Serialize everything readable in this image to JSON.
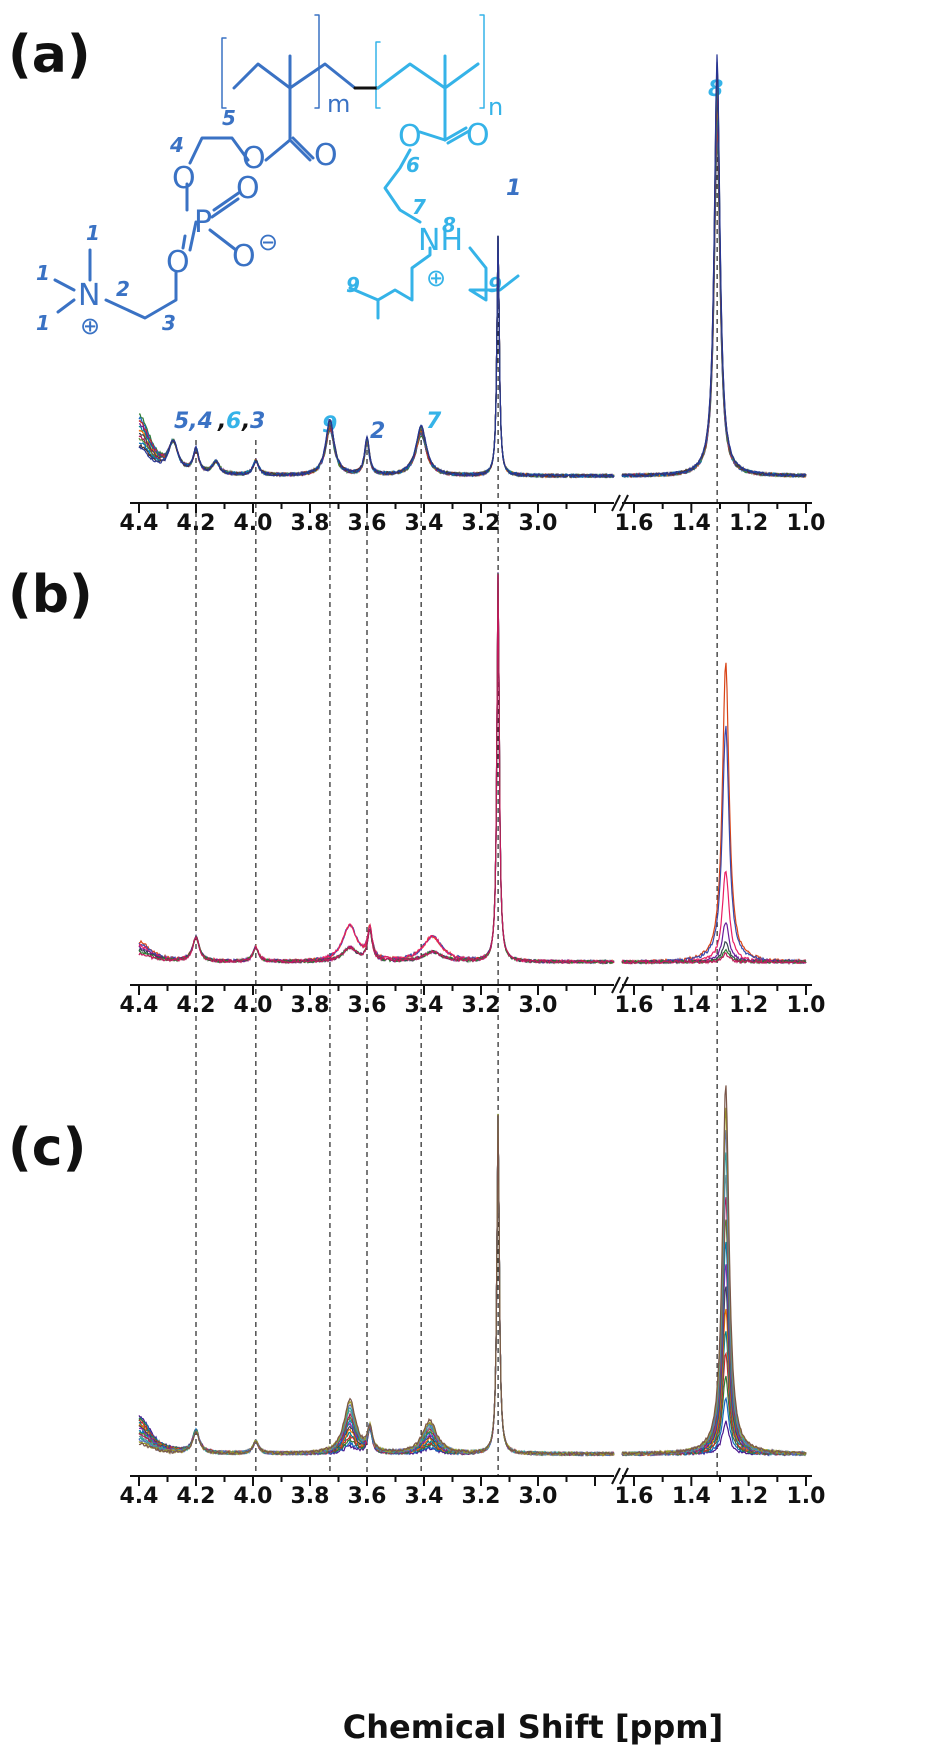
{
  "colors": {
    "dark_blue": "#3a72c4",
    "light_blue": "#35b3e8",
    "black": "#111111"
  },
  "structure": {
    "repeat_m": "m",
    "repeat_n": "n",
    "atoms": {
      "O": "O",
      "P": "P",
      "N": "N",
      "NH": "NH",
      "minus": "⊖",
      "plus": "⊕"
    },
    "numbers": {
      "n1": "1",
      "n2": "2",
      "n3": "3",
      "n4": "4",
      "n5": "5",
      "n6": "6",
      "n7": "7",
      "n8": "8",
      "n9": "9"
    }
  },
  "peak_labels_a": {
    "g1a": "5,4",
    "g1b": ",",
    "g1c": "6",
    "g1d": ",",
    "g1e": "3",
    "p9": "9",
    "p2": "2",
    "p7": "7",
    "p1": "1",
    "p8": "8"
  },
  "chart_data": [
    {
      "panel": "(a)",
      "type": "line",
      "x_segments": [
        [
          4.4,
          2.8
        ],
        [
          1.6,
          1.0
        ]
      ],
      "axis_break": "//",
      "xticks_left": [
        "4.4",
        "4.2",
        "4.0",
        "3.8",
        "3.6",
        "3.4",
        "3.2",
        "3.0"
      ],
      "xticks_right": [
        "1.6",
        "1.4",
        "1.2",
        "1.0"
      ],
      "reference_lines_ppm": [
        4.2,
        3.99,
        3.73,
        3.6,
        3.41,
        3.14,
        1.31
      ],
      "peaks": [
        {
          "label": "5,4",
          "ppm": 4.2
        },
        {
          "label": "3",
          "ppm": 3.99
        },
        {
          "label": "9",
          "ppm": 3.73
        },
        {
          "label": "2",
          "ppm": 3.6
        },
        {
          "label": "7",
          "ppm": 3.41
        },
        {
          "label": "1",
          "ppm": 3.14
        },
        {
          "label": "8",
          "ppm": 1.31
        }
      ],
      "traces_overlaid": "many"
    },
    {
      "panel": "(b)",
      "type": "line",
      "x_segments": [
        [
          4.4,
          2.8
        ],
        [
          1.6,
          1.0
        ]
      ],
      "axis_break": "//",
      "xticks_left": [
        "4.4",
        "4.2",
        "4.0",
        "3.8",
        "3.6",
        "3.4",
        "3.2",
        "3.0"
      ],
      "xticks_right": [
        "1.6",
        "1.4",
        "1.2",
        "1.0"
      ],
      "peaks_ppm": [
        4.2,
        3.99,
        3.66,
        3.59,
        3.37,
        3.14,
        1.28
      ],
      "traces_overlaid": "few"
    },
    {
      "panel": "(c)",
      "type": "line",
      "x_segments": [
        [
          4.4,
          2.8
        ],
        [
          1.6,
          1.0
        ]
      ],
      "axis_break": "//",
      "xticks_left": [
        "4.4",
        "4.2",
        "4.0",
        "3.8",
        "3.6",
        "3.4",
        "3.2",
        "3.0"
      ],
      "xticks_right": [
        "1.6",
        "1.4",
        "1.2",
        "1.0"
      ],
      "peaks_ppm": [
        4.2,
        3.99,
        3.66,
        3.59,
        3.38,
        3.14,
        1.28
      ],
      "traces_overlaid": "many",
      "xlabel": "Chemical Shift [ppm]"
    }
  ]
}
